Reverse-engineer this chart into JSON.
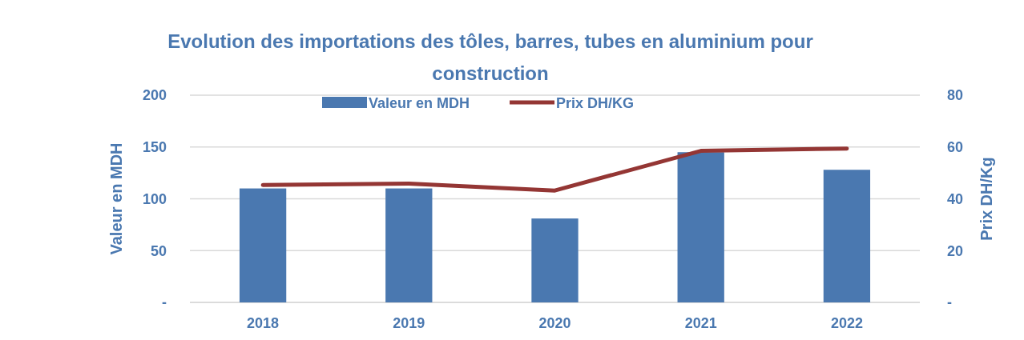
{
  "chart_data": {
    "type": "bar",
    "title": "Evolution des importations des tôles, barres, tubes en aluminium pour construction",
    "ylabel": "Valeur en MDH",
    "y2label": "Prix DH/Kg",
    "categories": [
      "2018",
      "2019",
      "2020",
      "2021",
      "2022"
    ],
    "series": [
      {
        "name": "Valeur en MDH",
        "color": "#4a78b0",
        "values": [
          110,
          110,
          81,
          145,
          128
        ]
      },
      {
        "name": "Prix DH/KG",
        "type": "line",
        "axis": "y2",
        "color": "#943634",
        "values": [
          45.3,
          45.9,
          43.2,
          58.5,
          59.4
        ]
      }
    ],
    "ylim": [
      0,
      200
    ],
    "yticks": [
      {
        "value": 0,
        "label": "-"
      },
      50,
      100,
      150,
      200
    ],
    "y2lim": [
      0,
      80
    ],
    "y2ticks": [
      {
        "value": 0,
        "label": "-"
      },
      20,
      40,
      60,
      80
    ],
    "grid": "y",
    "legend": "top",
    "marker": "none",
    "line_style": "solid"
  }
}
